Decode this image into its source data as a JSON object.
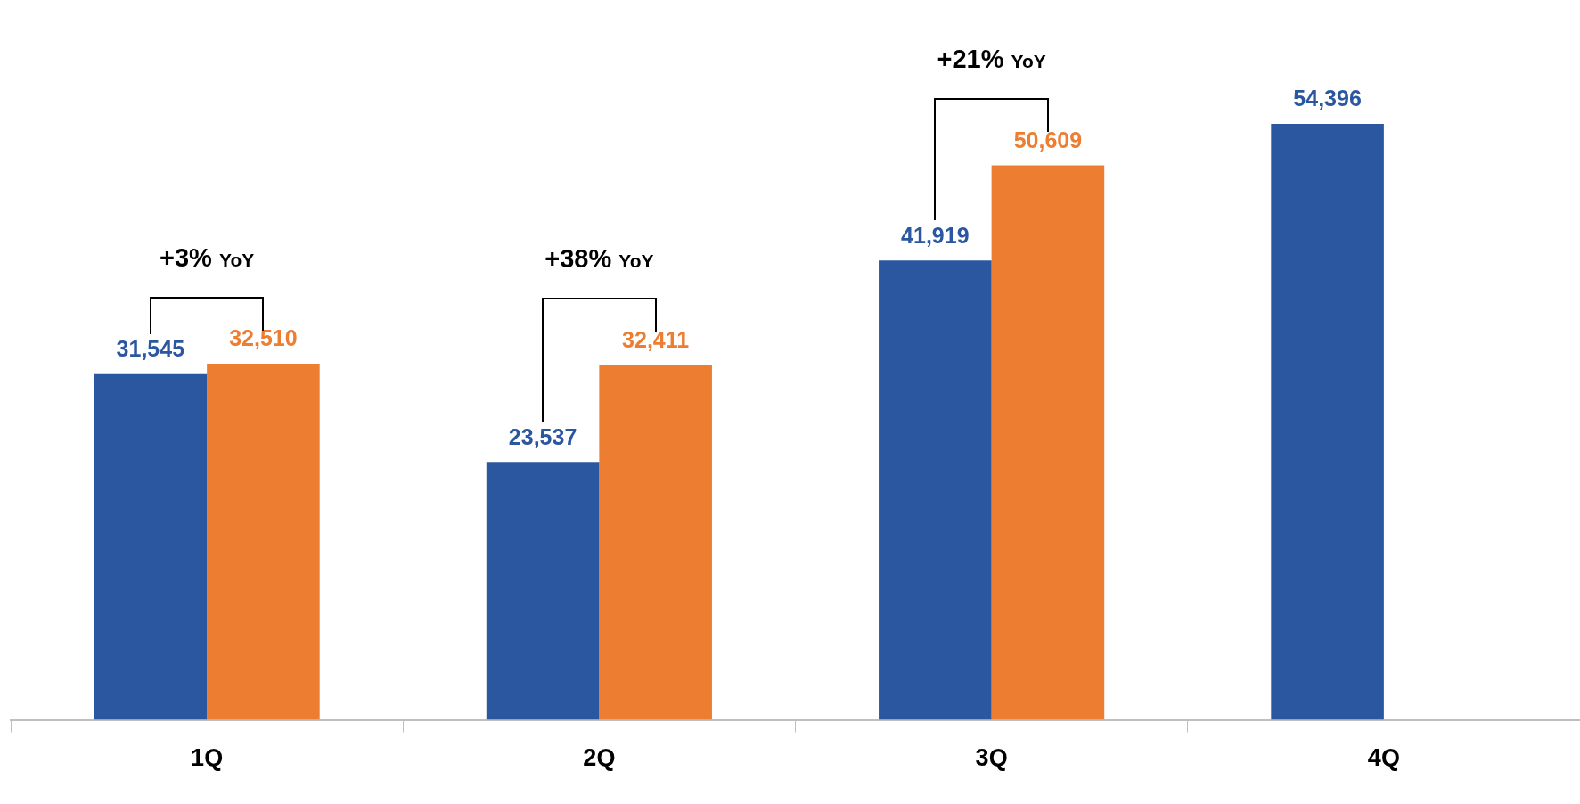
{
  "chart_data": {
    "type": "bar",
    "categories": [
      "1Q",
      "2Q",
      "3Q",
      "4Q"
    ],
    "series": [
      {
        "color": "#2b56a0",
        "values": [
          31545,
          23537,
          41919,
          54396
        ],
        "value_labels": [
          "31,545",
          "23,537",
          "41,919",
          "54,396"
        ]
      },
      {
        "color": "#ed7d31",
        "values": [
          32510,
          32411,
          50609,
          null
        ],
        "value_labels": [
          "32,510",
          "32,411",
          "50,609",
          null
        ]
      }
    ],
    "tick_labels": "x",
    "legend": false,
    "annotations": [
      "+3% YoY",
      "+38% YoY",
      "+21% YoY"
    ]
  }
}
